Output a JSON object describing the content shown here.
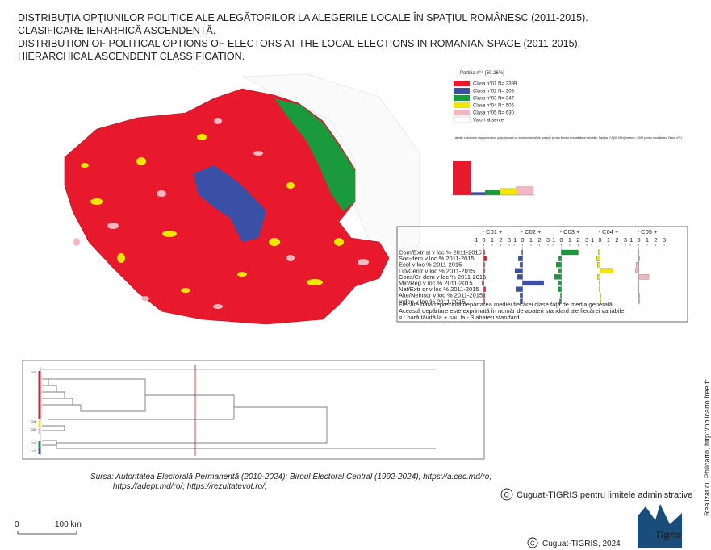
{
  "title_lines": [
    "DISTRIBUŢIA OPŢIUNILOR POLITICE ALE ALEGĂTORILOR LA ALEGERILE LOCALE  ÎN SPAŢIUL ROMÂNESC (2011-2015).",
    "CLASIFICARE IERARHICĂ ASCENDENTĂ.",
    "DISTRIBUTION OF POLITICAL OPTIONS OF ELECTORS AT THE LOCAL ELECTIONS IN ROMANIAN SPACE (2011-2015).",
    "HIERARCHICAL ASCENDENT CLASSIFICATION."
  ],
  "legend": {
    "title": "Partiţia n°4 [59.26%]",
    "classes": [
      {
        "label": "Clasa n°01 N=",
        "n": 2399,
        "color": "#e8192c"
      },
      {
        "label": "Clasa n°02 N=",
        "n": 208,
        "color": "#3a4fa6"
      },
      {
        "label": "Clasa n°03 N=",
        "n": 347,
        "color": "#1a9a3c"
      },
      {
        "label": "Clasa n°04 N=",
        "n": 505,
        "color": "#f0e600"
      },
      {
        "label": "Clasa n°05 N=",
        "n": 630,
        "color": "#f4b6c0"
      }
    ],
    "absent": "Valori absente"
  },
  "histogram_note": "Lăţimile coloanelor diagramei sunt proporţionale cu numărul de celule spaţiale pentru fiecare modalitate a variabilei. Partiţia n°4 [59.26%] maxim = 2399 pentru modalitatea Clasa n°01",
  "profile": {
    "xlim": [
      -1,
      3
    ],
    "ticks": [
      -1,
      0,
      1,
      2,
      3
    ],
    "variables": [
      "Com/Extr st v loc % 2011-2015",
      "Soc-dem v loc % 2011-2015",
      "Ecol v loc % 2011-2015",
      "Lib/Centr v loc % 2011-2015",
      "Cons/Cr-dem v loc % 2011-2015",
      "Min/Reg v loc % 2011-2015",
      "Nat/Extr dr v loc % 2011-2015",
      "Alte/Neinscr v loc % 2011-2015",
      "Indep v loc % 2011-2015"
    ],
    "classes": [
      {
        "header": "- C01 +",
        "color": "#e8192c",
        "values": [
          0.1,
          0.3,
          0.1,
          0.1,
          -0.1,
          -0.2,
          0.2,
          0.1,
          0.1
        ]
      },
      {
        "header": "- C02 +",
        "color": "#3a4fa6",
        "values": [
          -0.1,
          -0.5,
          -0.3,
          -0.9,
          -0.6,
          2.5,
          -0.8,
          -0.3,
          -0.3
        ]
      },
      {
        "header": "- C03 +",
        "color": "#1a9a3c",
        "values": [
          2.0,
          -0.3,
          -0.6,
          -0.3,
          -0.8,
          -0.3,
          -0.4,
          -0.1,
          -0.2
        ]
      },
      {
        "header": "- C04 +",
        "color": "#f0e600",
        "values": [
          -0.2,
          -0.4,
          -0.3,
          1.5,
          -0.3,
          -0.1,
          -0.1,
          0.1,
          0.1
        ]
      },
      {
        "header": "- C05 +",
        "color": "#f4b6c0",
        "values": [
          -0.1,
          0.1,
          -0.3,
          -0.4,
          1.2,
          -0.1,
          -0.1,
          0.1,
          0.1
        ]
      }
    ],
    "notes": [
      "Fiecare bară reprezintă depărtarea mediei fiecărei clase faţă de media generală.",
      "Această depărtare este exprimată în număr  de abateri standard ale fiecărei variabile",
      "¤ : bară tăiată la + sau la - 3 abateri standard"
    ]
  },
  "dendrogram": {
    "labels": [
      "C01",
      "C04",
      "C05",
      "C03",
      "C02"
    ]
  },
  "source": [
    "Sursa: Autoritatea Electorală Permanentă (2010-2024); Biroul Electoral Central (1992-2024); https://a.cec.md/ro;",
    "https://adept.md/ro/; https://rezultatevot.ro/;"
  ],
  "scale": {
    "zero": "0",
    "label": "100 km"
  },
  "credits": {
    "limits": "Cuguat-TIGRIS pentru limitele administrative",
    "year": "Cuguat-TIGRIS, 2024",
    "software": "Realizat cu Philcarto, http://philcarto.free.fr",
    "logo": "Tigris"
  }
}
